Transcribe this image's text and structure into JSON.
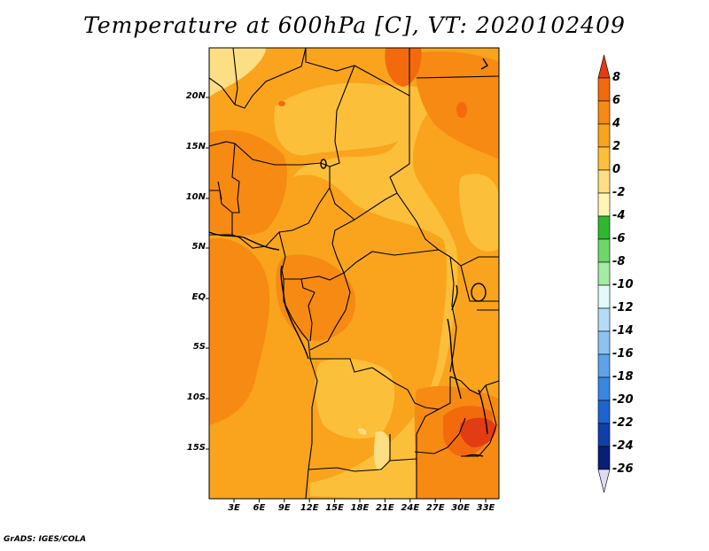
{
  "title": "Temperature at 600hPa [C], VT: 2020102409",
  "credit": "GrADS: IGES/COLA",
  "lat_labels": [
    "20N",
    "15N",
    "10N",
    "5N",
    "EQ",
    "5S",
    "10S",
    "15S"
  ],
  "lon_labels": [
    "3E",
    "6E",
    "9E",
    "12E",
    "15E",
    "18E",
    "21E",
    "24E",
    "27E",
    "30E",
    "33E"
  ],
  "colorbar": {
    "labels": [
      "8",
      "6",
      "4",
      "2",
      "0",
      "-2",
      "-4",
      "-6",
      "-8",
      "-10",
      "-12",
      "-14",
      "-16",
      "-18",
      "-20",
      "-22",
      "-24",
      "-26"
    ],
    "colors": [
      "#e23c12",
      "#f26a0c",
      "#f78a12",
      "#f9a41c",
      "#fbbf3a",
      "#fcde84",
      "#fff5b4",
      "#2eb82e",
      "#6cd86c",
      "#a4eca4",
      "#e1f9f9",
      "#b4dcf6",
      "#8ec2f0",
      "#5fa2e8",
      "#3a86e0",
      "#1e64d0",
      "#123eaa",
      "#0a1e78",
      "#dcdcf4"
    ]
  },
  "colors": {
    "field_base": "#f9a41c",
    "field_warm": "#f78a12",
    "field_cool": "#fbbf3a",
    "field_cold": "#fcde84",
    "field_hot": "#f26a0c",
    "field_max": "#e23c12",
    "border": "#000000"
  }
}
